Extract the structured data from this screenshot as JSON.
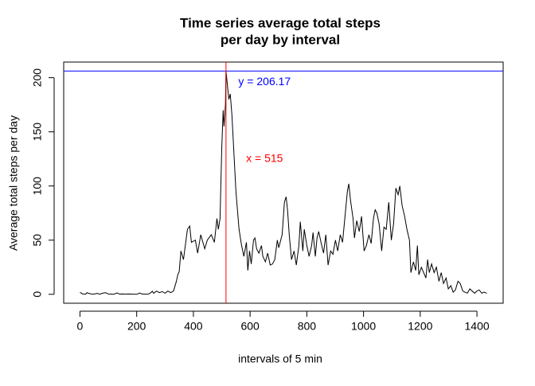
{
  "chart_data": {
    "type": "line",
    "title": [
      "Time series average total steps",
      "per day by interval"
    ],
    "xlabel": "intervals of 5 min",
    "ylabel": "Average total steps per day",
    "x": [
      0,
      10,
      20,
      25,
      30,
      40,
      50,
      60,
      70,
      80,
      90,
      100,
      110,
      120,
      130,
      140,
      150,
      160,
      170,
      200,
      210,
      220,
      230,
      240,
      250,
      255,
      260,
      270,
      280,
      290,
      300,
      310,
      320,
      330,
      340,
      345,
      350,
      356,
      365,
      379,
      387,
      393,
      407,
      415,
      426,
      440,
      449,
      463,
      474,
      483,
      488,
      494,
      500,
      505,
      508,
      513,
      515,
      525,
      530,
      536,
      545,
      550,
      561,
      570,
      578,
      587,
      592,
      598,
      604,
      612,
      617,
      623,
      631,
      640,
      645,
      654,
      662,
      671,
      679,
      687,
      696,
      701,
      713,
      721,
      727,
      732,
      738,
      746,
      755,
      763,
      772,
      777,
      786,
      791,
      800,
      808,
      817,
      822,
      830,
      836,
      842,
      850,
      859,
      867,
      875,
      884,
      892,
      901,
      909,
      918,
      926,
      934,
      943,
      948,
      954,
      963,
      968,
      976,
      985,
      993,
      1002,
      1010,
      1019,
      1027,
      1035,
      1041,
      1047,
      1055,
      1064,
      1072,
      1080,
      1089,
      1098,
      1106,
      1114,
      1122,
      1128,
      1136,
      1145,
      1153,
      1162,
      1167,
      1176,
      1184,
      1190,
      1195,
      1204,
      1212,
      1220,
      1226,
      1232,
      1240,
      1249,
      1257,
      1266,
      1274,
      1282,
      1291,
      1299,
      1308,
      1316,
      1324,
      1333,
      1341,
      1350,
      1358,
      1366,
      1375,
      1383,
      1392,
      1400,
      1408,
      1417,
      1425,
      1435
    ],
    "series": [
      {
        "name": "steps",
        "color": "#000000",
        "values": [
          1.7,
          0.3,
          0.1,
          1.5,
          0.9,
          0.3,
          0.2,
          0.8,
          0.1,
          1.0,
          1.5,
          0.3,
          0.2,
          0,
          1.3,
          0.2,
          0.3,
          0.1,
          0.3,
          0,
          1.2,
          0.2,
          0.2,
          0,
          1.5,
          2.8,
          0.9,
          3,
          1.5,
          2.5,
          1,
          3,
          1.5,
          3,
          12,
          18,
          21,
          40,
          32,
          60,
          63,
          48,
          50,
          38,
          55,
          42,
          50,
          55,
          48,
          70,
          60,
          70,
          135,
          170,
          155,
          175,
          206.17,
          180,
          185,
          165,
          120,
          95,
          60,
          45,
          35,
          48,
          22,
          40,
          28,
          50,
          52,
          42,
          38,
          45,
          35,
          30,
          38,
          27,
          28,
          32,
          50,
          43,
          55,
          85,
          90,
          78,
          55,
          32,
          40,
          27,
          45,
          67,
          40,
          60,
          45,
          35,
          45,
          57,
          35,
          52,
          58,
          48,
          38,
          55,
          27,
          40,
          37,
          50,
          40,
          55,
          48,
          70,
          95,
          102,
          87,
          70,
          52,
          68,
          58,
          72,
          40,
          45,
          55,
          47,
          70,
          78,
          75,
          65,
          40,
          62,
          60,
          85,
          50,
          65,
          98,
          92,
          100,
          82,
          72,
          60,
          50,
          20,
          30,
          22,
          45,
          18,
          25,
          20,
          15,
          32,
          20,
          28,
          20,
          25,
          12,
          20,
          10,
          15,
          5,
          8,
          2,
          4,
          12,
          10,
          3,
          2,
          1,
          5,
          3,
          1,
          3,
          4,
          1,
          2,
          1
        ]
      }
    ],
    "hline": {
      "value": 206.17,
      "color": "#0000ff"
    },
    "vline": {
      "value": 515,
      "color": "#ff0000"
    },
    "annotations": [
      {
        "text": "y = 206.17",
        "x": 651,
        "y": 196,
        "color": "#0000ff"
      },
      {
        "text": "x = 515",
        "x": 651,
        "y": 125,
        "color": "#ff0000"
      }
    ],
    "xlim": [
      -57.4,
      1492.4
    ],
    "xticks": [
      0,
      200,
      400,
      600,
      800,
      1000,
      1200,
      1400
    ],
    "ylim": [
      -8.25,
      214.42
    ],
    "yticks": [
      0,
      50,
      100,
      150,
      200
    ]
  }
}
